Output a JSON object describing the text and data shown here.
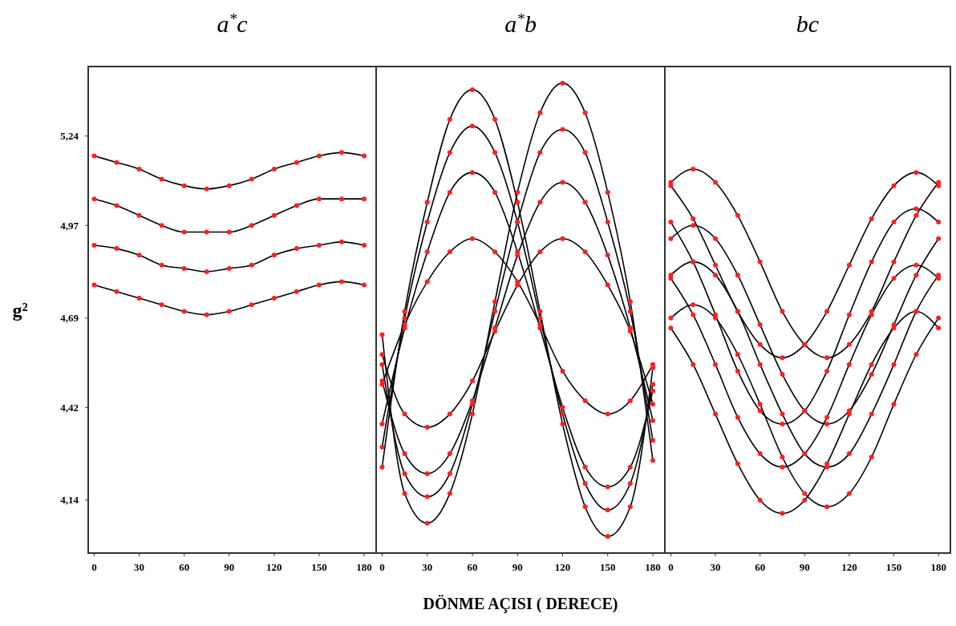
{
  "chart_data": [
    {
      "type": "line",
      "title": "a$^{*}$c",
      "ylabel": "g²",
      "xlim": [
        -4,
        188
      ],
      "ylim": [
        3.98,
        5.45
      ],
      "xticks": [
        0,
        30,
        60,
        90,
        120,
        150,
        180
      ],
      "yticks": [
        {
          "value": 5.24,
          "label": "5,24"
        },
        {
          "value": 4.97,
          "label": "4,97"
        },
        {
          "value": 4.69,
          "label": "4,69"
        },
        {
          "value": 4.42,
          "label": "4,42"
        },
        {
          "value": 4.14,
          "label": "4,14"
        }
      ],
      "x": [
        0,
        15,
        30,
        45,
        60,
        75,
        90,
        105,
        120,
        135,
        150,
        165,
        180
      ],
      "series": [
        {
          "color": "#000000",
          "values": [
            5.18,
            5.16,
            5.14,
            5.11,
            5.09,
            5.08,
            5.09,
            5.11,
            5.14,
            5.16,
            5.18,
            5.19,
            5.18
          ]
        },
        {
          "color": "#000000",
          "values": [
            5.05,
            5.03,
            5.0,
            4.97,
            4.95,
            4.95,
            4.95,
            4.97,
            5.0,
            5.03,
            5.05,
            5.05,
            5.05
          ]
        },
        {
          "color": "#000000",
          "values": [
            4.91,
            4.9,
            4.88,
            4.85,
            4.84,
            4.83,
            4.84,
            4.85,
            4.88,
            4.9,
            4.91,
            4.92,
            4.91
          ]
        },
        {
          "color": "#000000",
          "values": [
            4.79,
            4.77,
            4.75,
            4.73,
            4.71,
            4.7,
            4.71,
            4.73,
            4.75,
            4.77,
            4.79,
            4.8,
            4.79
          ]
        },
        {
          "type": "scatter",
          "color": "#ff2020",
          "marker": "circle",
          "x": [
            0,
            15,
            30,
            45,
            60,
            75,
            90,
            105,
            120,
            135,
            150,
            165,
            180,
            0,
            15,
            30,
            45,
            60,
            75,
            90,
            105,
            120,
            135,
            150,
            165,
            180,
            0,
            15,
            30,
            45,
            60,
            75,
            90,
            105,
            120,
            135,
            150,
            165,
            180,
            0,
            15,
            30,
            45,
            60,
            75,
            90,
            105,
            120,
            135,
            150,
            165,
            180
          ],
          "values": [
            5.18,
            5.16,
            5.14,
            5.11,
            5.09,
            5.08,
            5.09,
            5.11,
            5.14,
            5.16,
            5.18,
            5.19,
            5.18,
            5.05,
            5.03,
            5.0,
            4.97,
            4.95,
            4.95,
            4.95,
            4.97,
            5.0,
            5.03,
            5.05,
            5.05,
            5.05,
            4.91,
            4.9,
            4.88,
            4.85,
            4.84,
            4.83,
            4.84,
            4.85,
            4.88,
            4.9,
            4.91,
            4.92,
            4.91,
            4.79,
            4.77,
            4.75,
            4.73,
            4.71,
            4.7,
            4.71,
            4.73,
            4.75,
            4.77,
            4.79,
            4.8,
            4.79
          ]
        }
      ]
    },
    {
      "type": "line",
      "title": "a$^{*}$b",
      "xlabel": "DÖNME AÇISI ( DERECE)",
      "xlim": [
        -4,
        188
      ],
      "ylim": [
        3.98,
        5.45
      ],
      "tick_labels": "x",
      "xticks": [
        0,
        30,
        60,
        90,
        120,
        150,
        180
      ],
      "x": [
        0,
        15,
        30,
        45,
        60,
        75,
        90,
        105,
        120,
        135,
        150,
        165,
        180
      ],
      "series": [
        {
          "color": "#000000",
          "values": [
            4.24,
            4.71,
            5.04,
            5.29,
            5.38,
            5.29,
            5.04,
            4.71,
            4.37,
            4.12,
            4.03,
            4.12,
            4.54
          ]
        },
        {
          "color": "#000000",
          "values": [
            4.3,
            4.69,
            4.98,
            5.19,
            5.27,
            5.19,
            4.98,
            4.69,
            4.4,
            4.19,
            4.11,
            4.19,
            4.49
          ]
        },
        {
          "color": "#000000",
          "values": [
            4.37,
            4.66,
            4.89,
            5.07,
            5.13,
            5.07,
            4.89,
            4.66,
            4.42,
            4.24,
            4.18,
            4.24,
            4.47
          ]
        },
        {
          "color": "#000000",
          "values": [
            4.49,
            4.67,
            4.8,
            4.89,
            4.93,
            4.89,
            4.8,
            4.67,
            4.53,
            4.44,
            4.4,
            4.44,
            4.55
          ]
        },
        {
          "color": "#000000",
          "values": [
            4.64,
            4.16,
            4.07,
            4.16,
            4.4,
            4.74,
            5.07,
            5.31,
            5.4,
            5.31,
            5.07,
            4.74,
            4.26
          ]
        },
        {
          "color": "#000000",
          "values": [
            4.55,
            4.22,
            4.15,
            4.22,
            4.43,
            4.71,
            4.98,
            5.19,
            5.26,
            5.19,
            4.98,
            4.71,
            4.32
          ]
        },
        {
          "color": "#000000",
          "values": [
            4.5,
            4.28,
            4.22,
            4.28,
            4.44,
            4.66,
            4.88,
            5.04,
            5.1,
            5.04,
            4.88,
            4.66,
            4.38
          ]
        },
        {
          "color": "#000000",
          "values": [
            4.58,
            4.4,
            4.36,
            4.4,
            4.5,
            4.65,
            4.79,
            4.89,
            4.93,
            4.89,
            4.79,
            4.65,
            4.43
          ]
        },
        {
          "type": "scatter",
          "color": "#ff2020",
          "marker": "circle",
          "x": [
            0,
            15,
            30,
            45,
            60,
            75,
            90,
            105,
            120,
            135,
            150,
            165,
            180,
            0,
            15,
            30,
            45,
            60,
            75,
            90,
            105,
            120,
            135,
            150,
            165,
            180,
            0,
            15,
            30,
            45,
            60,
            75,
            90,
            105,
            120,
            135,
            150,
            165,
            180,
            0,
            15,
            30,
            45,
            60,
            75,
            90,
            105,
            120,
            135,
            150,
            165,
            180,
            0,
            15,
            30,
            45,
            60,
            75,
            90,
            105,
            120,
            135,
            150,
            165,
            180,
            0,
            15,
            30,
            45,
            60,
            75,
            90,
            105,
            120,
            135,
            150,
            165,
            180,
            0,
            15,
            30,
            45,
            60,
            75,
            90,
            105,
            120,
            135,
            150,
            165,
            180,
            0,
            15,
            30,
            45,
            60,
            75,
            90,
            105,
            120,
            135,
            150,
            165,
            180
          ],
          "values": [
            4.24,
            4.71,
            5.04,
            5.29,
            5.38,
            5.29,
            5.04,
            4.71,
            4.37,
            4.12,
            4.03,
            4.12,
            4.54,
            4.3,
            4.69,
            4.98,
            5.19,
            5.27,
            5.19,
            4.98,
            4.69,
            4.4,
            4.19,
            4.11,
            4.19,
            4.49,
            4.37,
            4.66,
            4.89,
            5.07,
            5.13,
            5.07,
            4.89,
            4.66,
            4.42,
            4.24,
            4.18,
            4.24,
            4.47,
            4.49,
            4.67,
            4.8,
            4.89,
            4.93,
            4.89,
            4.8,
            4.67,
            4.53,
            4.44,
            4.4,
            4.44,
            4.55,
            4.64,
            4.16,
            4.07,
            4.16,
            4.4,
            4.74,
            5.07,
            5.31,
            5.4,
            5.31,
            5.07,
            4.74,
            4.26,
            4.55,
            4.22,
            4.15,
            4.22,
            4.43,
            4.71,
            4.98,
            5.19,
            5.26,
            5.19,
            4.98,
            4.71,
            4.32,
            4.5,
            4.28,
            4.22,
            4.28,
            4.44,
            4.66,
            4.88,
            5.04,
            5.1,
            5.04,
            4.88,
            4.66,
            4.38,
            4.58,
            4.4,
            4.36,
            4.4,
            4.5,
            4.65,
            4.79,
            4.89,
            4.93,
            4.89,
            4.79,
            4.65,
            4.43
          ]
        }
      ]
    },
    {
      "type": "line",
      "title": "bc",
      "xlim": [
        -4,
        188
      ],
      "ylim": [
        3.98,
        5.45
      ],
      "tick_labels": "x",
      "xticks": [
        0,
        30,
        60,
        90,
        120,
        150,
        180
      ],
      "x": [
        0,
        15,
        30,
        45,
        60,
        75,
        90,
        105,
        120,
        135,
        150,
        165,
        180
      ],
      "series": [
        {
          "color": "#000000",
          "values": [
            5.1,
            5.14,
            5.1,
            5.0,
            4.86,
            4.71,
            4.61,
            4.57,
            4.61,
            4.71,
            4.86,
            5.0,
            5.1
          ]
        },
        {
          "color": "#000000",
          "values": [
            4.93,
            4.97,
            4.93,
            4.82,
            4.67,
            4.52,
            4.41,
            4.37,
            4.41,
            4.52,
            4.67,
            4.82,
            4.93
          ]
        },
        {
          "color": "#000000",
          "values": [
            4.82,
            4.86,
            4.82,
            4.71,
            4.55,
            4.4,
            4.28,
            4.24,
            4.28,
            4.4,
            4.55,
            4.71,
            4.82
          ]
        },
        {
          "color": "#000000",
          "values": [
            4.69,
            4.73,
            4.69,
            4.58,
            4.43,
            4.27,
            4.16,
            4.12,
            4.16,
            4.27,
            4.43,
            4.58,
            4.69
          ]
        },
        {
          "color": "#000000",
          "values": [
            5.09,
            4.99,
            4.85,
            4.71,
            4.61,
            4.57,
            4.61,
            4.71,
            4.85,
            4.99,
            5.09,
            5.13,
            5.09
          ]
        },
        {
          "color": "#000000",
          "values": [
            4.98,
            4.86,
            4.7,
            4.53,
            4.41,
            4.37,
            4.41,
            4.53,
            4.7,
            4.86,
            4.98,
            5.02,
            4.98
          ]
        },
        {
          "color": "#000000",
          "values": [
            4.81,
            4.7,
            4.55,
            4.39,
            4.28,
            4.24,
            4.28,
            4.39,
            4.55,
            4.7,
            4.81,
            4.85,
            4.81
          ]
        },
        {
          "color": "#000000",
          "values": [
            4.66,
            4.55,
            4.4,
            4.25,
            4.14,
            4.1,
            4.14,
            4.25,
            4.4,
            4.55,
            4.66,
            4.71,
            4.66
          ]
        },
        {
          "type": "scatter",
          "color": "#ff2020",
          "marker": "circle",
          "x": [
            0,
            15,
            30,
            45,
            60,
            75,
            90,
            105,
            120,
            135,
            150,
            165,
            180,
            0,
            15,
            30,
            45,
            60,
            75,
            90,
            105,
            120,
            135,
            150,
            165,
            180,
            0,
            15,
            30,
            45,
            60,
            75,
            90,
            105,
            120,
            135,
            150,
            165,
            180,
            0,
            15,
            30,
            45,
            60,
            75,
            90,
            105,
            120,
            135,
            150,
            165,
            180,
            0,
            15,
            30,
            45,
            60,
            75,
            90,
            105,
            120,
            135,
            150,
            165,
            180,
            0,
            15,
            30,
            45,
            60,
            75,
            90,
            105,
            120,
            135,
            150,
            165,
            180,
            0,
            15,
            30,
            45,
            60,
            75,
            90,
            105,
            120,
            135,
            150,
            165,
            180,
            0,
            15,
            30,
            45,
            60,
            75,
            90,
            105,
            120,
            135,
            150,
            165,
            180
          ],
          "values": [
            5.1,
            5.14,
            5.1,
            5.0,
            4.86,
            4.71,
            4.61,
            4.57,
            4.61,
            4.71,
            4.86,
            5.0,
            5.1,
            4.93,
            4.97,
            4.93,
            4.82,
            4.67,
            4.52,
            4.41,
            4.37,
            4.41,
            4.52,
            4.67,
            4.82,
            4.93,
            4.82,
            4.86,
            4.82,
            4.71,
            4.55,
            4.4,
            4.28,
            4.24,
            4.28,
            4.4,
            4.55,
            4.71,
            4.82,
            4.69,
            4.73,
            4.69,
            4.58,
            4.43,
            4.27,
            4.16,
            4.12,
            4.16,
            4.27,
            4.43,
            4.58,
            4.69,
            5.09,
            4.99,
            4.85,
            4.71,
            4.61,
            4.57,
            4.61,
            4.71,
            4.85,
            4.99,
            5.09,
            5.13,
            5.09,
            4.98,
            4.86,
            4.7,
            4.53,
            4.41,
            4.37,
            4.41,
            4.53,
            4.7,
            4.86,
            4.98,
            5.02,
            4.98,
            4.81,
            4.7,
            4.55,
            4.39,
            4.28,
            4.24,
            4.28,
            4.39,
            4.55,
            4.7,
            4.81,
            4.85,
            4.81,
            4.66,
            4.55,
            4.4,
            4.25,
            4.14,
            4.1,
            4.14,
            4.25,
            4.4,
            4.55,
            4.66,
            4.71,
            4.66
          ]
        }
      ]
    }
  ]
}
